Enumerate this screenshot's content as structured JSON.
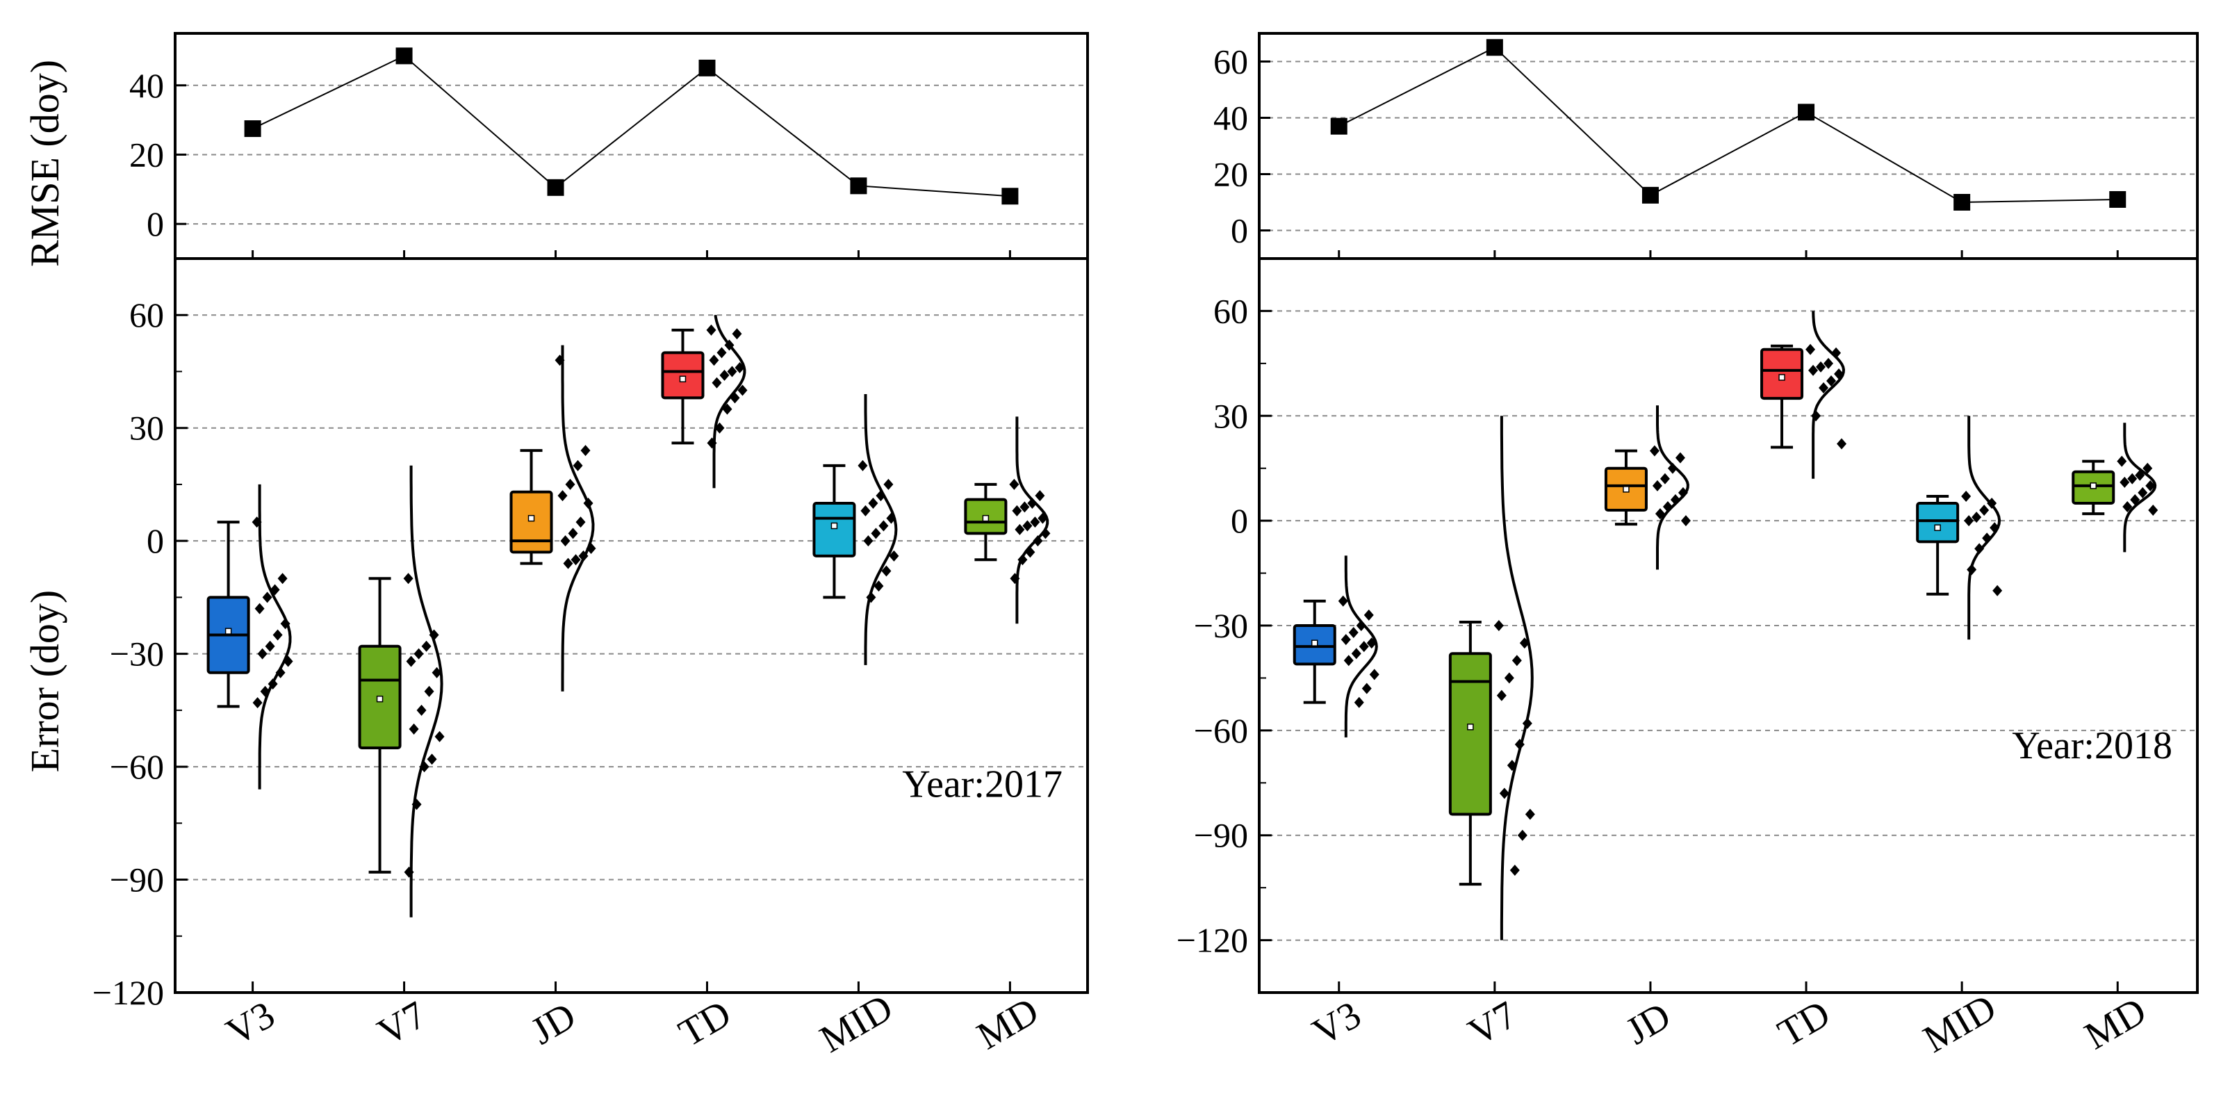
{
  "figure": {
    "categories": [
      "V3",
      "V7",
      "JD",
      "TD",
      "MID",
      "MD"
    ],
    "colors": {
      "V3": "#1a6fd1",
      "V7": "#6aa81c",
      "JD": "#f39a1a",
      "TD": "#f2393c",
      "MID": "#1aafd3",
      "MD": "#76b21d"
    },
    "rmse_ylabel": "RMSE (doy)",
    "error_ylabel": "Error (doy)"
  },
  "chart_data": [
    {
      "type": "line",
      "panel": "2017-rmse",
      "title": "",
      "ylabel": "RMSE (doy)",
      "categories": [
        "V3",
        "V7",
        "JD",
        "TD",
        "MID",
        "MD"
      ],
      "values": [
        27.5,
        48.5,
        10.5,
        45,
        11,
        8
      ],
      "ylim": [
        -10,
        55
      ],
      "yticks": [
        0,
        20,
        40
      ],
      "grid": true
    },
    {
      "type": "box",
      "panel": "2017-error",
      "ylabel": "Error (doy)",
      "annotation": "Year:2017",
      "categories": [
        "V3",
        "V7",
        "JD",
        "TD",
        "MID",
        "MD"
      ],
      "ylim": [
        -120,
        75
      ],
      "yticks": [
        60,
        30,
        0,
        -30,
        -60,
        -90,
        -120
      ],
      "grid": true,
      "boxes": [
        {
          "name": "V3",
          "whisker_low": -44,
          "q1": -35,
          "median": -25,
          "q3": -15,
          "whisker_high": 5,
          "mean": -24,
          "points": [
            5,
            -10,
            -13,
            -15,
            -18,
            -22,
            -25,
            -28,
            -30,
            -32,
            -35,
            -38,
            -40,
            -43
          ],
          "dist_range": [
            -66,
            15
          ],
          "dist_mean": -26,
          "dist_sd": 9
        },
        {
          "name": "V7",
          "whisker_low": -88,
          "q1": -55,
          "median": -37,
          "q3": -28,
          "whisker_high": -10,
          "mean": -42,
          "points": [
            -10,
            -25,
            -28,
            -30,
            -32,
            -35,
            -40,
            -45,
            -50,
            -52,
            -58,
            -60,
            -70,
            -88
          ],
          "dist_range": [
            -100,
            20
          ],
          "dist_mean": -38,
          "dist_sd": 15
        },
        {
          "name": "JD",
          "whisker_low": -6,
          "q1": -3,
          "median": 0,
          "q3": 13,
          "whisker_high": 24,
          "mean": 6,
          "points": [
            48,
            24,
            20,
            15,
            12,
            10,
            5,
            2,
            0,
            -2,
            -4,
            -5,
            -6
          ],
          "dist_range": [
            -40,
            52
          ],
          "dist_mean": 4,
          "dist_sd": 10
        },
        {
          "name": "TD",
          "whisker_low": 26,
          "q1": 38,
          "median": 45,
          "q3": 50,
          "whisker_high": 56,
          "mean": 43,
          "points": [
            56,
            55,
            52,
            50,
            48,
            46,
            45,
            44,
            42,
            40,
            38,
            35,
            30,
            26
          ],
          "dist_range": [
            14,
            60
          ],
          "dist_mean": 45,
          "dist_sd": 6
        },
        {
          "name": "MID",
          "whisker_low": -15,
          "q1": -4,
          "median": 6,
          "q3": 10,
          "whisker_high": 20,
          "mean": 4,
          "points": [
            20,
            15,
            12,
            10,
            8,
            6,
            4,
            2,
            0,
            -4,
            -8,
            -12,
            -15
          ],
          "dist_range": [
            -33,
            39
          ],
          "dist_mean": 3,
          "dist_sd": 9
        },
        {
          "name": "MD",
          "whisker_low": -5,
          "q1": 2,
          "median": 5,
          "q3": 11,
          "whisker_high": 15,
          "mean": 6,
          "points": [
            15,
            12,
            10,
            9,
            8,
            6,
            5,
            4,
            3,
            2,
            0,
            -3,
            -5,
            -10
          ],
          "dist_range": [
            -22,
            33
          ],
          "dist_mean": 5,
          "dist_sd": 5
        }
      ]
    },
    {
      "type": "line",
      "panel": "2018-rmse",
      "title": "",
      "ylabel": "RMSE (doy)",
      "categories": [
        "V3",
        "V7",
        "JD",
        "TD",
        "MID",
        "MD"
      ],
      "values": [
        37,
        65,
        12.5,
        42,
        10,
        11
      ],
      "ylim": [
        -10,
        70
      ],
      "yticks": [
        0,
        20,
        40,
        60
      ],
      "grid": true
    },
    {
      "type": "box",
      "panel": "2018-error",
      "ylabel": "Error (doy)",
      "annotation": "Year:2018",
      "categories": [
        "V3",
        "V7",
        "JD",
        "TD",
        "MID",
        "MD"
      ],
      "ylim": [
        -135,
        75
      ],
      "yticks": [
        60,
        30,
        0,
        -30,
        -60,
        -90,
        -120
      ],
      "grid": true,
      "boxes": [
        {
          "name": "V3",
          "whisker_low": -52,
          "q1": -41,
          "median": -36,
          "q3": -30,
          "whisker_high": -23,
          "mean": -35,
          "points": [
            -23,
            -27,
            -30,
            -32,
            -34,
            -35,
            -36,
            -38,
            -40,
            -44,
            -48,
            -52
          ],
          "dist_range": [
            -62,
            -10
          ],
          "dist_mean": -36,
          "dist_sd": 6
        },
        {
          "name": "V7",
          "whisker_low": -104,
          "q1": -84,
          "median": -46,
          "q3": -38,
          "whisker_high": -29,
          "mean": -59,
          "points": [
            -30,
            -35,
            -40,
            -45,
            -50,
            -58,
            -64,
            -70,
            -78,
            -84,
            -90,
            -100
          ],
          "dist_range": [
            -120,
            30
          ],
          "dist_mean": -45,
          "dist_sd": 20
        },
        {
          "name": "JD",
          "whisker_low": -1,
          "q1": 3,
          "median": 10,
          "q3": 15,
          "whisker_high": 20,
          "mean": 9,
          "points": [
            20,
            18,
            15,
            12,
            10,
            8,
            6,
            4,
            2,
            0
          ],
          "dist_range": [
            -14,
            33
          ],
          "dist_mean": 10,
          "dist_sd": 5
        },
        {
          "name": "TD",
          "whisker_low": 21,
          "q1": 35,
          "median": 43,
          "q3": 49,
          "whisker_high": 50,
          "mean": 41,
          "points": [
            49,
            48,
            45,
            44,
            43,
            42,
            40,
            38,
            30,
            22
          ],
          "dist_range": [
            12,
            60
          ],
          "dist_mean": 43,
          "dist_sd": 5
        },
        {
          "name": "MID",
          "whisker_low": -21,
          "q1": -6,
          "median": 0,
          "q3": 5,
          "whisker_high": 7,
          "mean": -2,
          "points": [
            7,
            5,
            3,
            1,
            0,
            -2,
            -5,
            -8,
            -14,
            -20
          ],
          "dist_range": [
            -34,
            30
          ],
          "dist_mean": 0,
          "dist_sd": 6
        },
        {
          "name": "MD",
          "whisker_low": 2,
          "q1": 5,
          "median": 10,
          "q3": 14,
          "whisker_high": 17,
          "mean": 10,
          "points": [
            17,
            15,
            13,
            12,
            11,
            10,
            8,
            6,
            4,
            3
          ],
          "dist_range": [
            -9,
            28
          ],
          "dist_mean": 10,
          "dist_sd": 4
        }
      ]
    }
  ]
}
